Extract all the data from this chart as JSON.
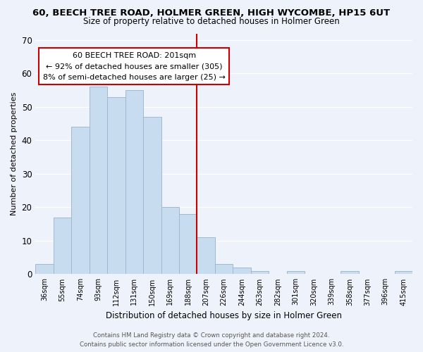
{
  "title": "60, BEECH TREE ROAD, HOLMER GREEN, HIGH WYCOMBE, HP15 6UT",
  "subtitle": "Size of property relative to detached houses in Holmer Green",
  "xlabel": "Distribution of detached houses by size in Holmer Green",
  "ylabel": "Number of detached properties",
  "bar_labels": [
    "36sqm",
    "55sqm",
    "74sqm",
    "93sqm",
    "112sqm",
    "131sqm",
    "150sqm",
    "169sqm",
    "188sqm",
    "207sqm",
    "226sqm",
    "244sqm",
    "263sqm",
    "282sqm",
    "301sqm",
    "320sqm",
    "339sqm",
    "358sqm",
    "377sqm",
    "396sqm",
    "415sqm"
  ],
  "bar_values": [
    3,
    17,
    44,
    56,
    53,
    55,
    47,
    20,
    18,
    11,
    3,
    2,
    1,
    0,
    1,
    0,
    0,
    1,
    0,
    0,
    1
  ],
  "bar_color": "#c8dcf0",
  "bar_edge_color": "#a0b8d0",
  "vline_color": "#cc0000",
  "vline_index": 9,
  "ylim": [
    0,
    72
  ],
  "yticks": [
    0,
    10,
    20,
    30,
    40,
    50,
    60,
    70
  ],
  "annotation_title": "60 BEECH TREE ROAD: 201sqm",
  "annotation_line1": "← 92% of detached houses are smaller (305)",
  "annotation_line2": "8% of semi-detached houses are larger (25) →",
  "annotation_box_color": "#ffffff",
  "annotation_box_edge": "#cc0000",
  "footer_line1": "Contains HM Land Registry data © Crown copyright and database right 2024.",
  "footer_line2": "Contains public sector information licensed under the Open Government Licence v3.0.",
  "background_color": "#eef2fb",
  "grid_color": "#ffffff"
}
